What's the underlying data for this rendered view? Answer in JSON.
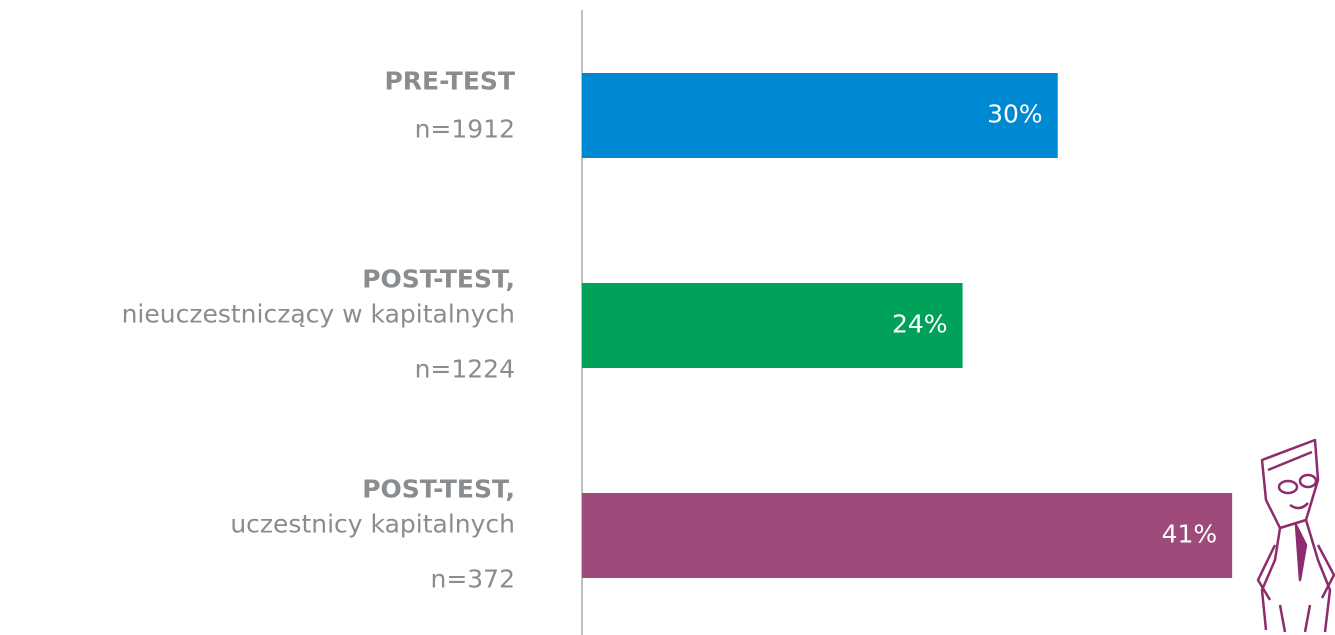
{
  "chart_data": {
    "type": "hbar",
    "categories": [
      [
        "PRE-TEST",
        "n=1912"
      ],
      [
        "POST-TEST,",
        "nieuczestniczący w kapitalnych",
        "n=1224"
      ],
      [
        "POST-TEST,",
        "uczestnicy kapitalnych",
        "n=372"
      ]
    ],
    "values": [
      30,
      24,
      41
    ],
    "value_labels": [
      "30%",
      "24%",
      "41%"
    ],
    "colors": [
      "#0089d3",
      "#00a25a",
      "#9e4a7a"
    ],
    "xlim": [
      0,
      42
    ]
  }
}
